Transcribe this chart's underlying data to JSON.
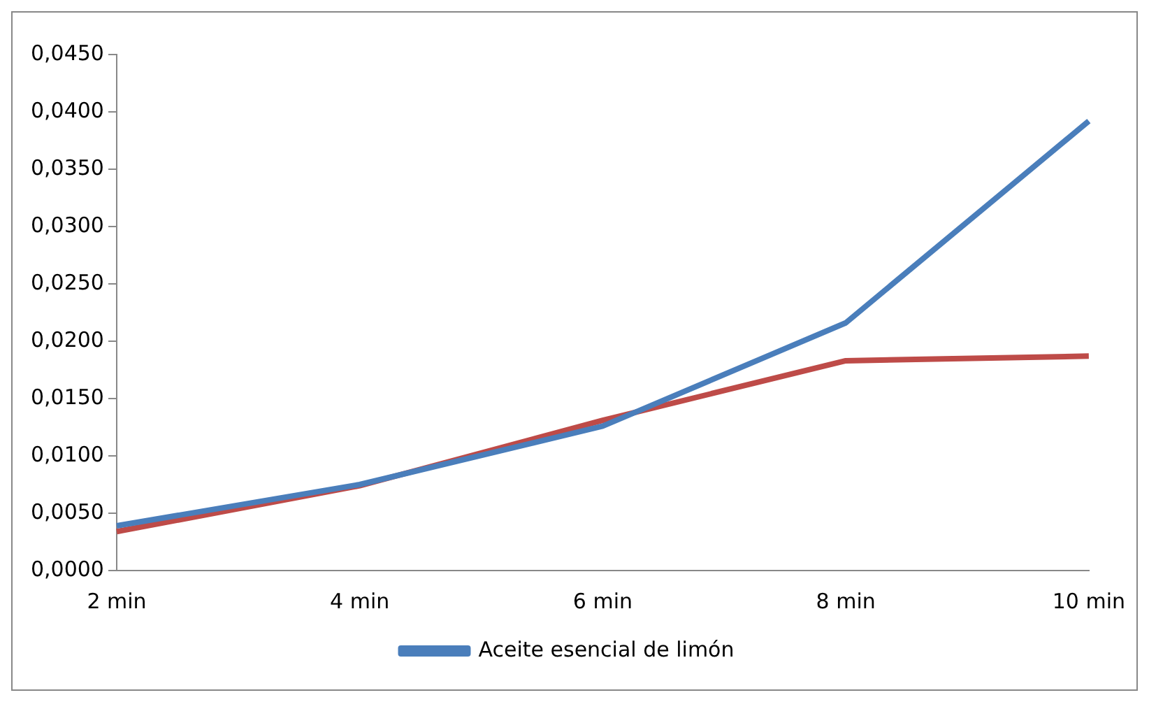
{
  "chart_data": {
    "type": "line",
    "categories": [
      "2 min",
      "4 min",
      "6 min",
      "8 min",
      "10 min"
    ],
    "series": [
      {
        "name": "Aceite esencial de limón",
        "color": "#4a7ebb",
        "values": [
          0.0039,
          0.0075,
          0.0126,
          0.0216,
          0.0392
        ]
      },
      {
        "color": "#be4b48",
        "values": [
          0.0034,
          0.0074,
          0.0131,
          0.0183,
          0.0187
        ]
      }
    ],
    "ylim": [
      0,
      0.045
    ],
    "yticks": [
      {
        "value": 0,
        "label": "0,0000"
      },
      {
        "value": 0.005,
        "label": "0,0050"
      },
      {
        "value": 0.01,
        "label": "0,0100"
      },
      {
        "value": 0.015,
        "label": "0,0150"
      },
      {
        "value": 0.02,
        "label": "0,0200"
      },
      {
        "value": 0.025,
        "label": "0,0250"
      },
      {
        "value": 0.03,
        "label": "0,0300"
      },
      {
        "value": 0.035,
        "label": "0,0350"
      },
      {
        "value": 0.04,
        "label": "0,0400"
      },
      {
        "value": 0.045,
        "label": "0,0450"
      }
    ],
    "grid": false,
    "legend": "bottom",
    "marker": "none",
    "line_style": "solid"
  }
}
